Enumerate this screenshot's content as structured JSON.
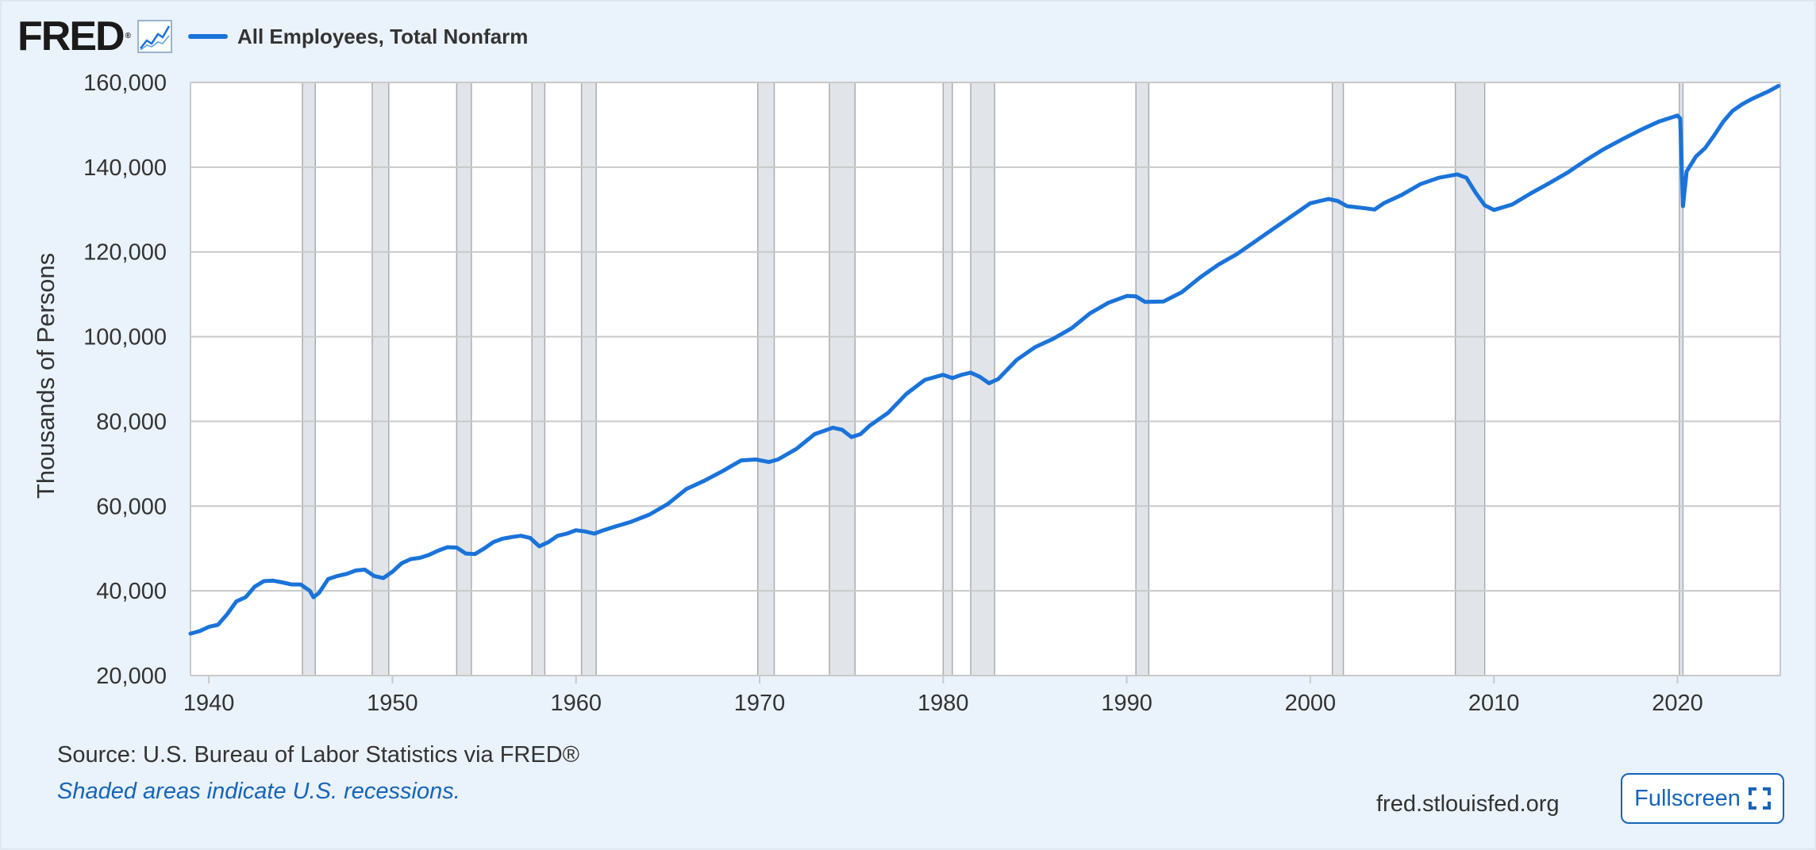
{
  "header": {
    "logo_text": "FRED",
    "logo_mark": "®",
    "logo_icon": "line-graph-icon",
    "legend_label": "All Employees, Total Nonfarm"
  },
  "footer": {
    "source": "Source: U.S. Bureau of Labor Statistics via FRED®",
    "recession_note": "Shaded areas indicate U.S. recessions.",
    "site": "fred.stlouisfed.org",
    "fullscreen_label": "Fullscreen",
    "fullscreen_icon": "expand-icon"
  },
  "colors": {
    "line": "#1a73d9",
    "recession_fill": "#e1e5ea",
    "recession_edge": "#a9adb2",
    "grid": "#c9c9c9",
    "background": "#eaf2fb"
  },
  "chart_data": {
    "type": "line",
    "title": "",
    "xlabel": "",
    "ylabel": "Thousands of Persons",
    "xlim": [
      1939.0,
      2025.6
    ],
    "ylim": [
      20000,
      160000
    ],
    "grid": true,
    "x_ticks": [
      1940,
      1950,
      1960,
      1970,
      1980,
      1990,
      2000,
      2010,
      2020
    ],
    "x_tick_labels": [
      "1940",
      "1950",
      "1960",
      "1970",
      "1980",
      "1990",
      "2000",
      "2010",
      "2020"
    ],
    "y_ticks": [
      20000,
      40000,
      60000,
      80000,
      100000,
      120000,
      140000,
      160000
    ],
    "y_tick_labels": [
      "20,000",
      "40,000",
      "60,000",
      "80,000",
      "100,000",
      "120,000",
      "140,000",
      "160,000"
    ],
    "legend": "top-left",
    "recessions": [
      [
        1945.1,
        1945.8
      ],
      [
        1948.9,
        1949.8
      ],
      [
        1953.5,
        1954.3
      ],
      [
        1957.6,
        1958.3
      ],
      [
        1960.3,
        1961.1
      ],
      [
        1969.9,
        1970.8
      ],
      [
        1973.8,
        1975.2
      ],
      [
        1980.0,
        1980.5
      ],
      [
        1981.5,
        1982.8
      ],
      [
        1990.5,
        1991.2
      ],
      [
        2001.2,
        2001.8
      ],
      [
        2007.9,
        2009.5
      ],
      [
        2020.1,
        2020.3
      ]
    ],
    "series": [
      {
        "name": "All Employees, Total Nonfarm",
        "x": [
          1939.0,
          1939.5,
          1940.0,
          1940.5,
          1941.0,
          1941.5,
          1942.0,
          1942.5,
          1943.0,
          1943.5,
          1944.0,
          1944.5,
          1945.0,
          1945.5,
          1945.7,
          1946.0,
          1946.5,
          1947.0,
          1947.5,
          1948.0,
          1948.5,
          1949.0,
          1949.5,
          1950.0,
          1950.5,
          1951.0,
          1951.5,
          1952.0,
          1952.5,
          1953.0,
          1953.5,
          1954.0,
          1954.5,
          1955.0,
          1955.5,
          1956.0,
          1956.5,
          1957.0,
          1957.5,
          1958.0,
          1958.5,
          1959.0,
          1959.5,
          1960.0,
          1960.5,
          1961.0,
          1961.5,
          1962.0,
          1963.0,
          1964.0,
          1965.0,
          1966.0,
          1967.0,
          1968.0,
          1969.0,
          1969.8,
          1970.5,
          1971.0,
          1972.0,
          1973.0,
          1974.0,
          1974.5,
          1975.0,
          1975.5,
          1976.0,
          1977.0,
          1978.0,
          1979.0,
          1980.0,
          1980.5,
          1981.0,
          1981.5,
          1982.0,
          1982.5,
          1983.0,
          1984.0,
          1985.0,
          1986.0,
          1987.0,
          1988.0,
          1989.0,
          1990.0,
          1990.5,
          1991.0,
          1992.0,
          1993.0,
          1994.0,
          1995.0,
          1996.0,
          1997.0,
          1998.0,
          1999.0,
          2000.0,
          2001.0,
          2001.5,
          2002.0,
          2003.0,
          2003.5,
          2004.0,
          2005.0,
          2006.0,
          2007.0,
          2008.0,
          2008.5,
          2009.0,
          2009.5,
          2010.0,
          2011.0,
          2012.0,
          2013.0,
          2014.0,
          2015.0,
          2016.0,
          2017.0,
          2018.0,
          2019.0,
          2020.0,
          2020.15,
          2020.3,
          2020.5,
          2021.0,
          2021.5,
          2022.0,
          2022.5,
          2023.0,
          2023.5,
          2024.0,
          2024.5,
          2025.0,
          2025.5
        ],
        "values": [
          29900,
          30500,
          31500,
          32000,
          34500,
          37500,
          38500,
          41000,
          42300,
          42400,
          42000,
          41500,
          41500,
          40000,
          38500,
          39500,
          42800,
          43500,
          44000,
          44800,
          45000,
          43500,
          43000,
          44500,
          46500,
          47500,
          47800,
          48500,
          49500,
          50300,
          50200,
          48800,
          48700,
          50000,
          51500,
          52300,
          52700,
          53000,
          52500,
          50500,
          51500,
          53000,
          53500,
          54300,
          54000,
          53500,
          54300,
          55000,
          56300,
          58000,
          60500,
          64000,
          66000,
          68300,
          70800,
          71000,
          70400,
          71000,
          73500,
          77000,
          78500,
          78000,
          76300,
          77000,
          79000,
          82000,
          86500,
          89800,
          91000,
          90200,
          91000,
          91500,
          90500,
          89000,
          90000,
          94500,
          97500,
          99500,
          102000,
          105500,
          108000,
          109600,
          109500,
          108200,
          108300,
          110500,
          114000,
          117000,
          119500,
          122500,
          125500,
          128500,
          131500,
          132500,
          132000,
          130800,
          130300,
          130000,
          131500,
          133500,
          136000,
          137500,
          138300,
          137500,
          134000,
          131000,
          129900,
          131200,
          133800,
          136200,
          138700,
          141600,
          144300,
          146600,
          148800,
          150800,
          152200,
          151500,
          130800,
          139000,
          142500,
          144500,
          147500,
          150800,
          153300,
          154800,
          156000,
          157000,
          158000,
          159200
        ]
      }
    ]
  }
}
